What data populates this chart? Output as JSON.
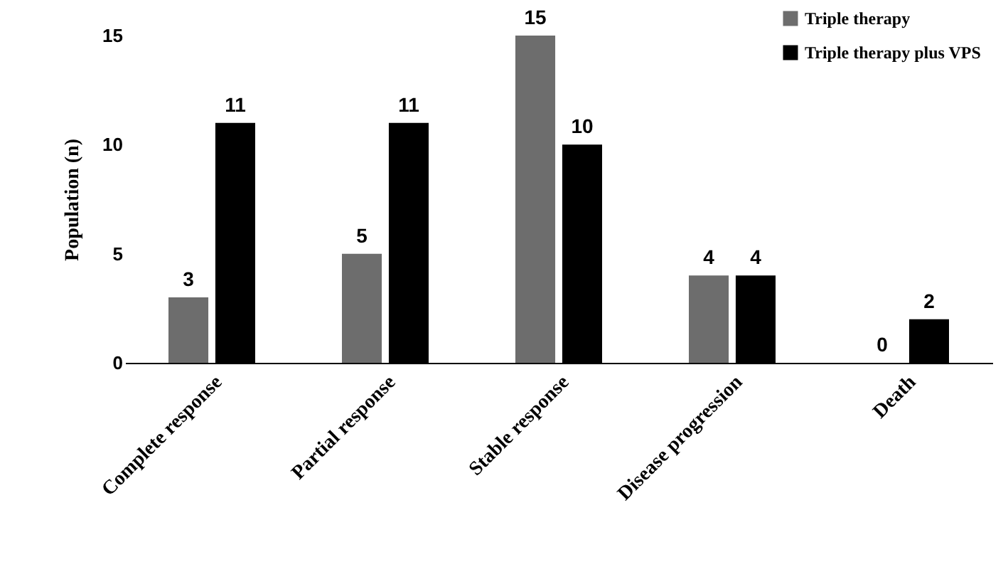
{
  "chart_data": {
    "type": "bar",
    "ylabel": "Population (n)",
    "categories": [
      "Complete response",
      "Partial response",
      "Stable response",
      "Disease progression",
      "Death"
    ],
    "series": [
      {
        "name": "Triple therapy",
        "color": "#6d6d6d",
        "values": [
          3,
          5,
          15,
          4,
          0
        ]
      },
      {
        "name": "Triple therapy plus VPS",
        "color": "#000000",
        "values": [
          11,
          11,
          10,
          4,
          2
        ]
      }
    ],
    "ylim": [
      0,
      15
    ],
    "yticks": [
      0,
      5,
      10,
      15
    ],
    "grid": false,
    "legend": "top right",
    "data_labels": true
  }
}
